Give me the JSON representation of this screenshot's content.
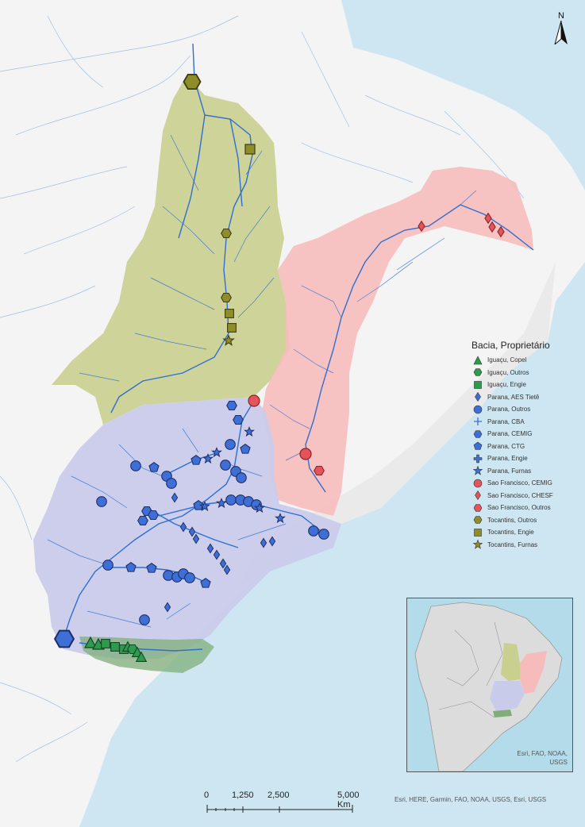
{
  "north_arrow": {
    "label": "N"
  },
  "legend": {
    "title": "Bacia, Proprietário",
    "items": [
      {
        "label": "Iguaçu, Copel",
        "symbol": "triangle",
        "color": "#2e9a4c"
      },
      {
        "label": "Iguaçu, Outros",
        "symbol": "hexagon",
        "color": "#2e9a4c"
      },
      {
        "label": "Iguaçu, Engie",
        "symbol": "square",
        "color": "#2e9a4c"
      },
      {
        "label": "Parana, AES Tietê",
        "symbol": "diamond",
        "color": "#3d6fd6"
      },
      {
        "label": "Parana, Outros",
        "symbol": "circle",
        "color": "#3d6fd6"
      },
      {
        "label": "Parana, CBA",
        "symbol": "cross",
        "color": "#3d6fd6"
      },
      {
        "label": "Parana, CEMIG",
        "symbol": "hexagon",
        "color": "#3d6fd6"
      },
      {
        "label": "Parana, CTG",
        "symbol": "pentagon",
        "color": "#3d6fd6"
      },
      {
        "label": "Parana, Engie",
        "symbol": "plus",
        "color": "#3d6fd6"
      },
      {
        "label": "Parana, Furnas",
        "symbol": "star",
        "color": "#3d6fd6"
      },
      {
        "label": "Sao Francisco, CEMIG",
        "symbol": "circle",
        "color": "#e4545a"
      },
      {
        "label": "Sao Francisco, CHESF",
        "symbol": "diamond",
        "color": "#e4545a"
      },
      {
        "label": "Sao Francisco, Outros",
        "symbol": "hexagon",
        "color": "#e4545a"
      },
      {
        "label": "Tocantins, Outros",
        "symbol": "hexagon",
        "color": "#8f8c2a"
      },
      {
        "label": "Tocantins, Engie",
        "symbol": "square",
        "color": "#8f8c2a"
      },
      {
        "label": "Tocantins, Furnas",
        "symbol": "star",
        "color": "#8f8c2a"
      }
    ]
  },
  "scale_bar": {
    "labels": [
      "0",
      "1,250",
      "2,500",
      "5,000 Km"
    ]
  },
  "attribution": "Esri, HERE, Garmin, FAO, NOAA, USGS, Esri, USGS",
  "inset_map": {
    "attribution": "Esri, FAO, NOAA, USGS"
  },
  "colors": {
    "ocean": "#cde6f2",
    "land": "#f4f4f4",
    "river": "#2f6fd0",
    "tocantins_basin": "#c9cf8f",
    "sao_francisco_basin": "#f6bcbc",
    "parana_basin": "#c9cbea",
    "iguacu_basin": "#7fae7a"
  }
}
